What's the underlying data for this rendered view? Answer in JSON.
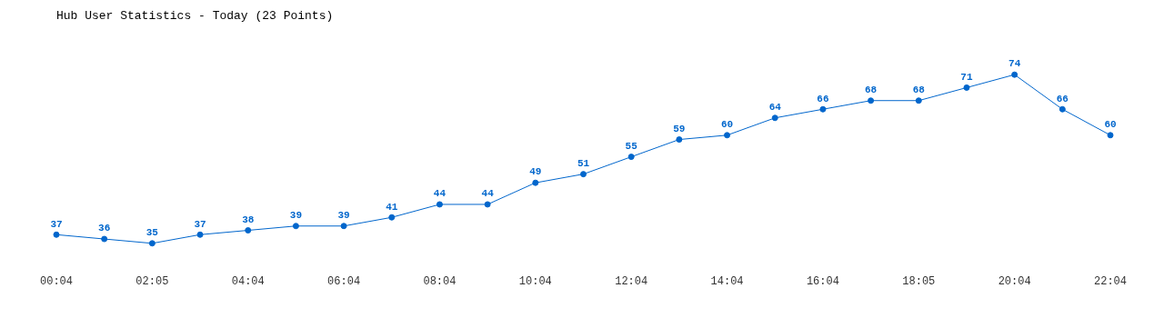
{
  "chart_data": {
    "type": "line",
    "title": "Hub User Statistics - Today (23 Points)",
    "categories": [
      "00:04",
      null,
      "02:05",
      null,
      "04:04",
      null,
      "06:04",
      null,
      "08:04",
      null,
      "10:04",
      null,
      "12:04",
      null,
      "14:04",
      null,
      "16:04",
      null,
      "18:05",
      null,
      "20:04",
      null,
      "22:04"
    ],
    "values": [
      37,
      36,
      35,
      37,
      38,
      39,
      39,
      41,
      44,
      44,
      49,
      51,
      55,
      59,
      60,
      64,
      66,
      68,
      68,
      71,
      74,
      66,
      60
    ],
    "color": "#0066cc",
    "tick_labels": "x",
    "grid": false,
    "data_labels": true,
    "marker": "circle",
    "legend": false
  }
}
